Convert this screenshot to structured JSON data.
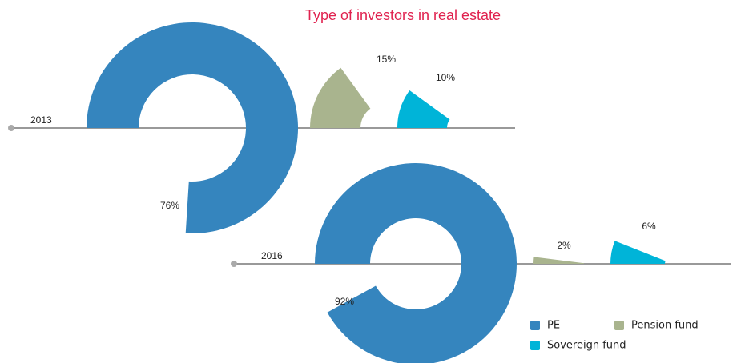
{
  "chart_data": {
    "type": "radial",
    "title": "Type of investors in real estate",
    "categories": [
      "2013",
      "2016"
    ],
    "series": [
      {
        "name": "PE",
        "color": "#3585be",
        "values": [
          76,
          92
        ],
        "value_labels": [
          "76%",
          "92%"
        ]
      },
      {
        "name": "Pension fund",
        "color": "#a9b48e",
        "values": [
          15,
          2
        ],
        "value_labels": [
          "15%",
          "2%"
        ]
      },
      {
        "name": "Sovereign fund",
        "color": "#00b4d8",
        "values": [
          10,
          6
        ],
        "value_labels": [
          "10%",
          "6%"
        ]
      }
    ]
  }
}
